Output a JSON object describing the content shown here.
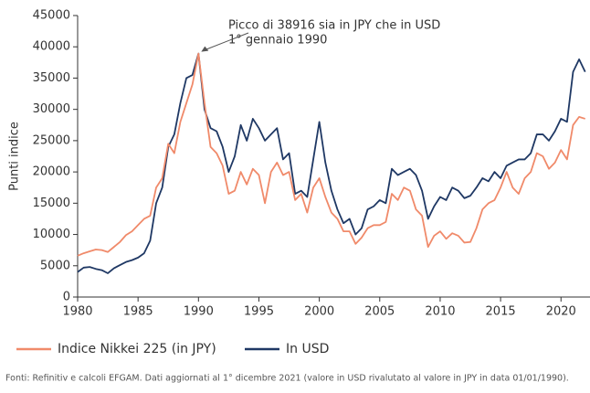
{
  "chart_data": {
    "type": "line",
    "y_label": "Punti indice",
    "annotation": [
      "Picco di 38916 sia in JPY che in USD",
      "1° gennaio 1990"
    ],
    "footnote": "Fonti: Refinitiv e calcoli EFGAM. Dati aggiornati al 1° dicembre 2021 (valore in USD rivalutato al valore in JPY in data 01/01/1990).",
    "x": [
      1980,
      1980.5,
      1981,
      1981.5,
      1982,
      1982.5,
      1983,
      1983.5,
      1984,
      1984.5,
      1985,
      1985.5,
      1986,
      1986.5,
      1987,
      1987.5,
      1988,
      1988.5,
      1989,
      1989.5,
      1990,
      1990.5,
      1991,
      1991.5,
      1992,
      1992.5,
      1993,
      1993.5,
      1994,
      1994.5,
      1995,
      1995.5,
      1996,
      1996.5,
      1997,
      1997.5,
      1998,
      1998.5,
      1999,
      1999.5,
      2000,
      2000.5,
      2001,
      2001.5,
      2002,
      2002.5,
      2003,
      2003.5,
      2004,
      2004.5,
      2005,
      2005.5,
      2006,
      2006.5,
      2007,
      2007.5,
      2008,
      2008.5,
      2009,
      2009.5,
      2010,
      2010.5,
      2011,
      2011.5,
      2012,
      2012.5,
      2013,
      2013.5,
      2014,
      2014.5,
      2015,
      2015.5,
      2016,
      2016.5,
      2017,
      2017.5,
      2018,
      2018.5,
      2019,
      2019.5,
      2020,
      2020.5,
      2021,
      2021.5,
      2022
    ],
    "series": [
      {
        "name": "Indice Nikkei 225 (in JPY)",
        "color": "#f08a6a",
        "values": [
          6600,
          7000,
          7300,
          7600,
          7500,
          7200,
          8000,
          8800,
          9900,
          10500,
          11500,
          12500,
          13000,
          17500,
          19000,
          24500,
          23000,
          28000,
          31000,
          34000,
          38916,
          31000,
          24000,
          23000,
          21000,
          16500,
          17000,
          20000,
          18000,
          20500,
          19500,
          15000,
          20000,
          21500,
          19500,
          20000,
          15500,
          16500,
          13500,
          17500,
          19000,
          16000,
          13500,
          12500,
          10500,
          10500,
          8500,
          9500,
          11000,
          11500,
          11500,
          12000,
          16500,
          15500,
          17500,
          17000,
          14000,
          13000,
          8000,
          9800,
          10500,
          9300,
          10200,
          9800,
          8700,
          8800,
          11000,
          14000,
          15000,
          15500,
          17500,
          20000,
          17500,
          16500,
          19000,
          20000,
          23000,
          22500,
          20500,
          21500,
          23500,
          22000,
          27500,
          28800,
          28500
        ]
      },
      {
        "name": "In USD",
        "color": "#1f3864",
        "values": [
          4000,
          4700,
          4800,
          4500,
          4300,
          3800,
          4600,
          5100,
          5600,
          5900,
          6300,
          7000,
          9000,
          15000,
          17500,
          24000,
          26000,
          31000,
          35000,
          35500,
          38916,
          30000,
          27000,
          26500,
          24000,
          20000,
          22500,
          27500,
          25000,
          28500,
          27000,
          25000,
          26000,
          27000,
          22000,
          23000,
          16500,
          17000,
          16000,
          22000,
          28000,
          21500,
          17000,
          14000,
          11800,
          12500,
          10000,
          11000,
          14000,
          14500,
          15500,
          15000,
          20500,
          19500,
          20000,
          20500,
          19500,
          17000,
          12500,
          14500,
          16000,
          15500,
          17500,
          17000,
          15800,
          16200,
          17500,
          19000,
          18500,
          20000,
          19000,
          21000,
          21500,
          22000,
          22000,
          23000,
          26000,
          26000,
          25000,
          26500,
          28500,
          28000,
          36000,
          38000,
          36000
        ]
      }
    ],
    "xlim": [
      1980,
      2022.4
    ],
    "xticks": [
      1980,
      1985,
      1990,
      1995,
      2000,
      2005,
      2010,
      2015,
      2020
    ],
    "ylim": [
      0,
      45000
    ],
    "yticks": [
      0,
      5000,
      10000,
      15000,
      20000,
      25000,
      30000,
      35000,
      40000,
      45000
    ]
  }
}
